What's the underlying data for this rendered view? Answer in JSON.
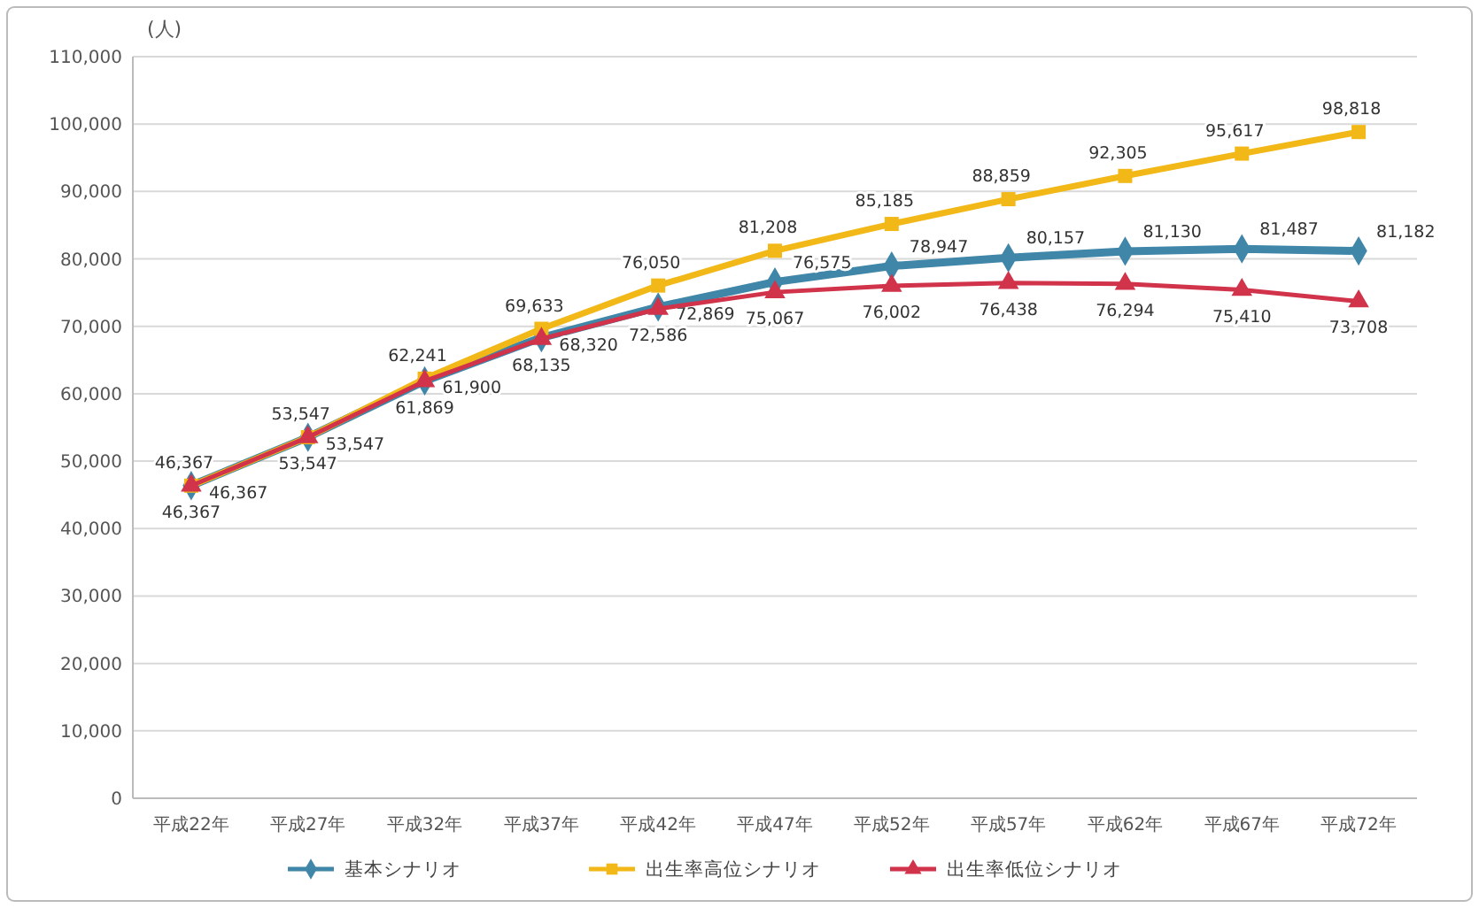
{
  "chart_data": {
    "type": "line",
    "ylabel": "(人)",
    "categories": [
      "平成22年",
      "平成27年",
      "平成32年",
      "平成37年",
      "平成42年",
      "平成47年",
      "平成52年",
      "平成57年",
      "平成62年",
      "平成67年",
      "平成72年"
    ],
    "series": [
      {
        "name": "基本シナリオ",
        "color": "#3f86a8",
        "marker": "diamond",
        "values": [
          46367,
          53547,
          61900,
          68320,
          72869,
          76575,
          78947,
          80157,
          81130,
          81487,
          81182
        ],
        "value_labels": [
          "46,367",
          "53,547",
          "61,900",
          "68,320",
          "72,869",
          "76,575",
          "78,947",
          "80,157",
          "81,130",
          "81,487",
          "81,182"
        ]
      },
      {
        "name": "出生率高位シナリオ",
        "color": "#f2b817",
        "marker": "square",
        "values": [
          46367,
          53547,
          62241,
          69633,
          76050,
          81208,
          85185,
          88859,
          92305,
          95617,
          98818
        ],
        "value_labels": [
          "46,367",
          "53,547",
          "62,241",
          "69,633",
          "76,050",
          "81,208",
          "85,185",
          "88,859",
          "92,305",
          "95,617",
          "98,818"
        ]
      },
      {
        "name": "出生率低位シナリオ",
        "color": "#d0334a",
        "marker": "triangle",
        "values": [
          46367,
          53547,
          61869,
          68135,
          72586,
          75067,
          76002,
          76438,
          76294,
          75410,
          73708
        ],
        "value_labels": [
          "46,367",
          "53,547",
          "61,869",
          "68,135",
          "72,586",
          "75,067",
          "76,002",
          "76,438",
          "76,294",
          "75,410",
          "73,708"
        ]
      }
    ],
    "ylim": [
      0,
      110000
    ],
    "yticks": [
      {
        "value": 0,
        "label": "0"
      },
      {
        "value": 10000,
        "label": "10,000"
      },
      {
        "value": 20000,
        "label": "20,000"
      },
      {
        "value": 30000,
        "label": "30,000"
      },
      {
        "value": 40000,
        "label": "40,000"
      },
      {
        "value": 50000,
        "label": "50,000"
      },
      {
        "value": 60000,
        "label": "60,000"
      },
      {
        "value": 70000,
        "label": "70,000"
      },
      {
        "value": 80000,
        "label": "80,000"
      },
      {
        "value": 90000,
        "label": "90,000"
      },
      {
        "value": 100000,
        "label": "100,000"
      },
      {
        "value": 110000,
        "label": "110,000"
      }
    ],
    "grid": "y",
    "legend": "bottom"
  }
}
